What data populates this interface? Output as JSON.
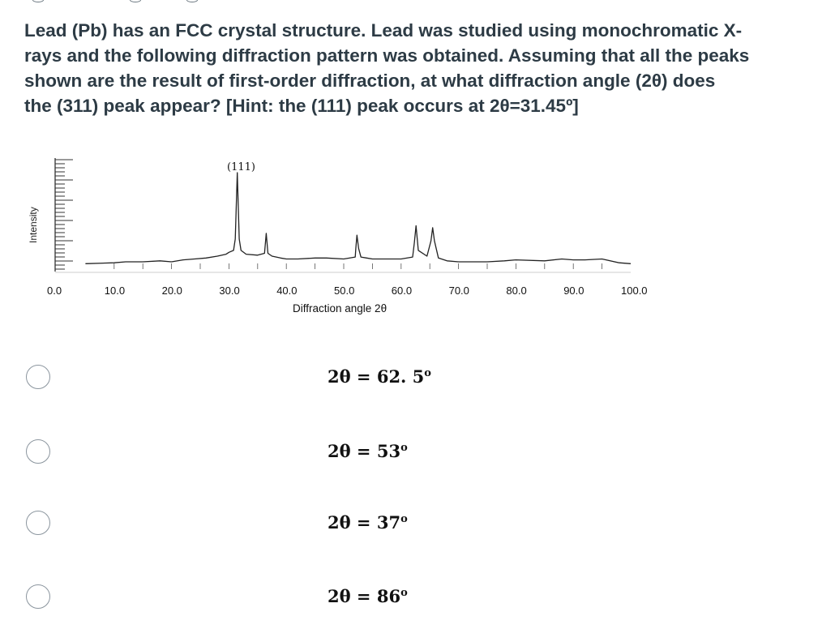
{
  "question": {
    "lines": [
      "Lead (Pb) has an FCC crystal structure.  Lead was studied using monochromatic X-",
      "rays and the following diffraction pattern was obtained. Assuming that all the peaks",
      "shown are the result of first-order diffraction, at what diffraction angle (2θ) does",
      "the (311) peak appear? [Hint: the (111) peak occurs at 2θ=31.45º]"
    ]
  },
  "figure": {
    "y_axis_title": "Intensity",
    "x_axis_title": "Diffraction angle 2θ",
    "peak_label": "(111)",
    "x_ticks": [
      "0.0",
      "10.0",
      "20.0",
      "30.0",
      "40.0",
      "50.0",
      "60.0",
      "70.0",
      "80.0",
      "90.0",
      "100.0"
    ]
  },
  "chart_data": {
    "type": "line",
    "title": "",
    "xlabel": "Diffraction angle 2θ",
    "ylabel": "Intensity",
    "xlim": [
      0,
      100
    ],
    "x_ticks": [
      0,
      10,
      20,
      30,
      40,
      50,
      60,
      70,
      80,
      90,
      100
    ],
    "annotations": [
      {
        "text": "(111)",
        "x": 31.45
      }
    ],
    "series": [
      {
        "x": [
          5,
          10,
          12,
          15,
          18,
          20,
          22,
          24,
          26,
          28,
          29.5,
          30,
          30.8,
          31.1,
          31.45,
          31.8,
          32.1,
          33,
          35,
          36.2,
          36.5,
          36.8,
          37.5,
          39,
          40,
          42,
          45,
          47,
          50,
          52,
          52.1,
          52.3,
          52.6,
          53,
          54,
          55,
          60,
          62,
          62.3,
          62.6,
          63,
          64.5,
          65.2,
          65.5,
          65.8,
          66.5,
          68,
          70,
          75,
          78,
          80,
          85,
          88,
          90,
          92,
          95,
          98,
          100
        ],
        "y": [
          4,
          5,
          6,
          6,
          7,
          6,
          8,
          9,
          10,
          12,
          14,
          16,
          18,
          30,
          100,
          30,
          18,
          14,
          13,
          15,
          36,
          15,
          12,
          10,
          9,
          9,
          10,
          10,
          9,
          11,
          20,
          34,
          20,
          11,
          10,
          9,
          9,
          11,
          26,
          44,
          18,
          12,
          28,
          42,
          28,
          10,
          7,
          6,
          6,
          7,
          8,
          7,
          9,
          8,
          8,
          9,
          5,
          4
        ]
      }
    ]
  },
  "options": [
    {
      "prefix": "2θ = 62. 5",
      "suffix": "o"
    },
    {
      "prefix": "2θ = 53",
      "suffix": "o"
    },
    {
      "prefix": "2θ = 37",
      "suffix": "o"
    },
    {
      "prefix": "2θ = 86",
      "suffix": "o"
    }
  ]
}
